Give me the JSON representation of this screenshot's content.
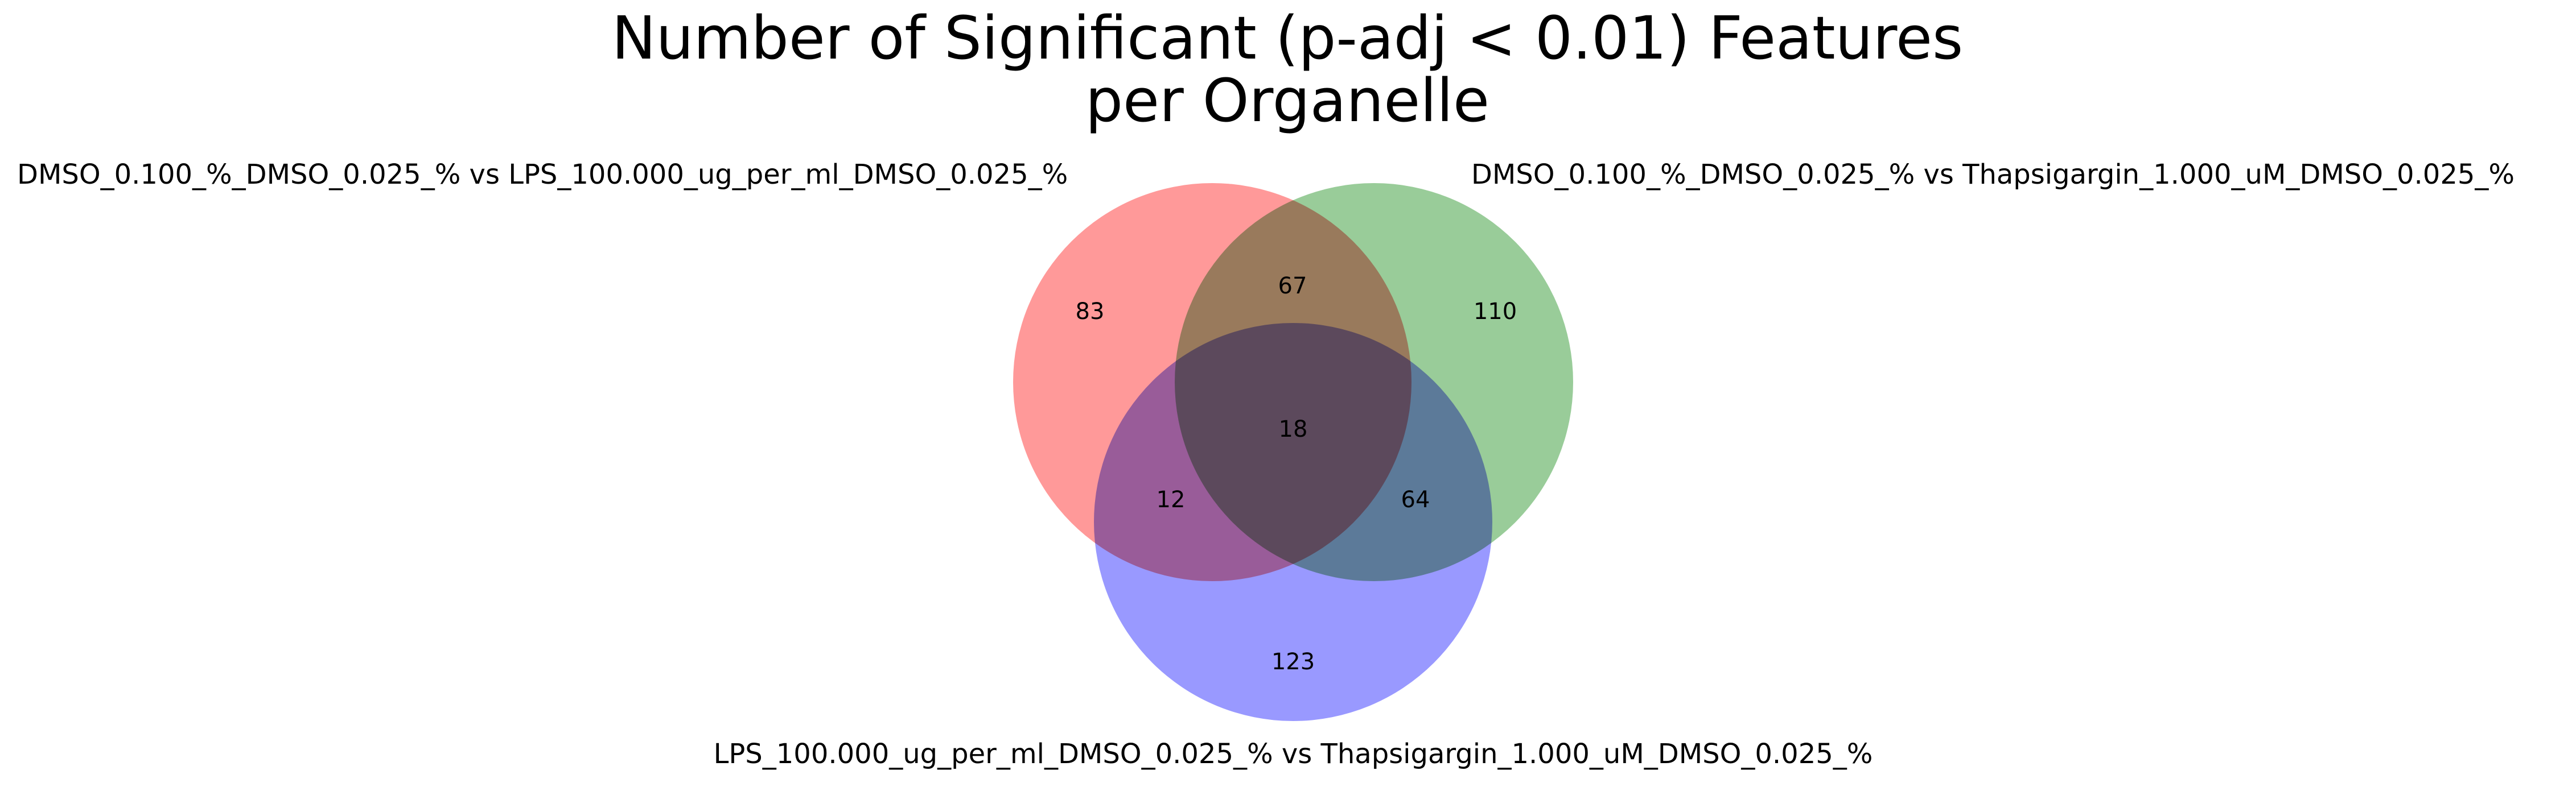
{
  "title": {
    "line1": "Number of Significant (p-adj < 0.01) Features",
    "line2": "per Organelle"
  },
  "sets": {
    "a": {
      "label": "DMSO_0.100_%_DMSO_0.025_% vs LPS_100.000_ug_per_ml_DMSO_0.025_%",
      "color": "#ff9999"
    },
    "b": {
      "label": "DMSO_0.100_%_DMSO_0.025_% vs Thapsigargin_1.000_uM_DMSO_0.025_%",
      "color": "#99cc99"
    },
    "c": {
      "label": "LPS_100.000_ug_per_ml_DMSO_0.025_% vs Thapsigargin_1.000_uM_DMSO_0.025_%",
      "color": "#9999ff"
    }
  },
  "regions": {
    "a_only": "83",
    "b_only": "110",
    "c_only": "123",
    "ab_only": "67",
    "ac_only": "12",
    "bc_only": "64",
    "abc": "18"
  }
}
